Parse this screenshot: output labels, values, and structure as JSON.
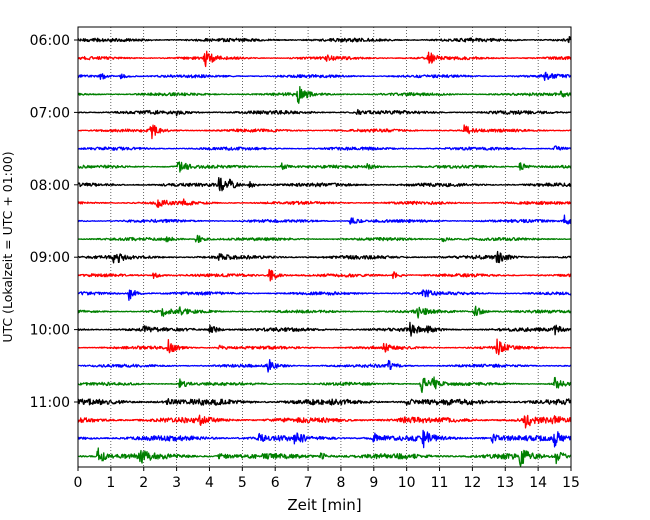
{
  "chart_data": {
    "type": "line",
    "title": "",
    "xlabel": "Zeit  [min]",
    "ylabel": "UTC (Lokalzeit = UTC + 01:00)",
    "xlim": [
      0,
      15
    ],
    "x_ticks": [
      "0",
      "1",
      "2",
      "3",
      "4",
      "5",
      "6",
      "7",
      "8",
      "9",
      "10",
      "11",
      "12",
      "13",
      "14",
      "15"
    ],
    "y_ticks": [
      "06:00",
      "07:00",
      "08:00",
      "09:00",
      "10:00",
      "11:00"
    ],
    "grid": "vertical-dotted",
    "trace_colors": [
      "#000000",
      "#ff0000",
      "#0000ff",
      "#008000"
    ],
    "traces": [
      {
        "start": "06:00",
        "events": [
          {
            "t": 14.95,
            "a": 0.3
          }
        ]
      },
      {
        "start": "06:15",
        "events": [
          {
            "t": 3.85,
            "a": 1.0
          },
          {
            "t": 10.65,
            "a": 0.8
          },
          {
            "t": 7.5,
            "a": 0.3
          }
        ]
      },
      {
        "start": "06:30",
        "events": [
          {
            "t": 0.7,
            "a": 0.35
          },
          {
            "t": 1.3,
            "a": 0.3
          },
          {
            "t": 14.2,
            "a": 0.35
          }
        ]
      },
      {
        "start": "06:45",
        "events": [
          {
            "t": 6.7,
            "a": 1.0
          },
          {
            "t": 14.7,
            "a": 0.3
          }
        ]
      },
      {
        "start": "07:00",
        "events": [
          {
            "t": 3.0,
            "a": 0.3
          },
          {
            "t": 8.5,
            "a": 0.25
          }
        ]
      },
      {
        "start": "07:15",
        "events": [
          {
            "t": 2.2,
            "a": 1.0
          },
          {
            "t": 11.75,
            "a": 0.6
          }
        ]
      },
      {
        "start": "07:30",
        "events": [
          {
            "t": 14.5,
            "a": 0.3
          }
        ]
      },
      {
        "start": "07:45",
        "events": [
          {
            "t": 3.05,
            "a": 0.95
          },
          {
            "t": 6.2,
            "a": 0.4
          },
          {
            "t": 8.8,
            "a": 0.35
          },
          {
            "t": 13.45,
            "a": 0.5
          }
        ]
      },
      {
        "start": "08:00",
        "events": [
          {
            "t": 4.3,
            "a": 0.9
          },
          {
            "t": 4.6,
            "a": 0.45
          },
          {
            "t": 5.2,
            "a": 0.35
          }
        ]
      },
      {
        "start": "08:15",
        "events": [
          {
            "t": 2.4,
            "a": 0.6
          },
          {
            "t": 3.2,
            "a": 0.3
          }
        ]
      },
      {
        "start": "08:30",
        "events": [
          {
            "t": 8.3,
            "a": 0.6
          },
          {
            "t": 14.8,
            "a": 0.6
          }
        ]
      },
      {
        "start": "08:45",
        "events": [
          {
            "t": 3.6,
            "a": 0.6
          },
          {
            "t": 2.7,
            "a": 0.3
          },
          {
            "t": 11.1,
            "a": 0.3
          }
        ]
      },
      {
        "start": "09:00",
        "events": [
          {
            "t": 1.1,
            "a": 0.9
          },
          {
            "t": 12.75,
            "a": 0.75
          },
          {
            "t": 4.3,
            "a": 0.3
          }
        ]
      },
      {
        "start": "09:15",
        "events": [
          {
            "t": 5.8,
            "a": 0.95
          },
          {
            "t": 2.3,
            "a": 0.35
          },
          {
            "t": 9.6,
            "a": 0.45
          }
        ]
      },
      {
        "start": "09:30",
        "events": [
          {
            "t": 1.55,
            "a": 0.75
          },
          {
            "t": 10.5,
            "a": 0.5
          }
        ]
      },
      {
        "start": "09:45",
        "events": [
          {
            "t": 2.55,
            "a": 0.55
          },
          {
            "t": 10.35,
            "a": 0.6
          },
          {
            "t": 12.05,
            "a": 0.8
          },
          {
            "t": 3.1,
            "a": 0.35
          }
        ]
      },
      {
        "start": "10:00",
        "events": [
          {
            "t": 4.0,
            "a": 0.7
          },
          {
            "t": 10.1,
            "a": 0.75
          },
          {
            "t": 10.6,
            "a": 0.4
          },
          {
            "t": 14.5,
            "a": 0.5
          },
          {
            "t": 2.0,
            "a": 0.3
          }
        ]
      },
      {
        "start": "10:15",
        "events": [
          {
            "t": 2.75,
            "a": 0.9
          },
          {
            "t": 12.75,
            "a": 1.0
          },
          {
            "t": 9.3,
            "a": 0.4
          },
          {
            "t": 4.3,
            "a": 0.3
          }
        ]
      },
      {
        "start": "10:30",
        "events": [
          {
            "t": 5.8,
            "a": 0.95
          },
          {
            "t": 9.45,
            "a": 0.5
          }
        ]
      },
      {
        "start": "10:45",
        "events": [
          {
            "t": 10.45,
            "a": 1.0
          },
          {
            "t": 10.8,
            "a": 0.7
          },
          {
            "t": 14.5,
            "a": 0.8
          },
          {
            "t": 3.1,
            "a": 0.6
          }
        ]
      },
      {
        "start": "11:00",
        "events": [
          {
            "t": 2.7,
            "a": 0.3
          },
          {
            "t": 10.0,
            "a": 0.35
          }
        ]
      },
      {
        "start": "11:15",
        "events": [
          {
            "t": 13.6,
            "a": 0.9
          },
          {
            "t": 3.7,
            "a": 0.45
          },
          {
            "t": 9.85,
            "a": 0.35
          },
          {
            "t": 14.4,
            "a": 0.4
          }
        ]
      },
      {
        "start": "11:30",
        "events": [
          {
            "t": 10.5,
            "a": 1.0
          },
          {
            "t": 12.6,
            "a": 0.6
          },
          {
            "t": 14.5,
            "a": 0.85
          },
          {
            "t": 5.5,
            "a": 0.5
          },
          {
            "t": 6.6,
            "a": 0.5
          },
          {
            "t": 9.0,
            "a": 0.5
          }
        ]
      },
      {
        "start": "11:45",
        "events": [
          {
            "t": 0.6,
            "a": 1.0
          },
          {
            "t": 1.9,
            "a": 0.7
          },
          {
            "t": 13.45,
            "a": 0.9
          },
          {
            "t": 14.55,
            "a": 1.0
          },
          {
            "t": 4.3,
            "a": 0.5
          },
          {
            "t": 7.4,
            "a": 0.4
          }
        ]
      }
    ]
  }
}
